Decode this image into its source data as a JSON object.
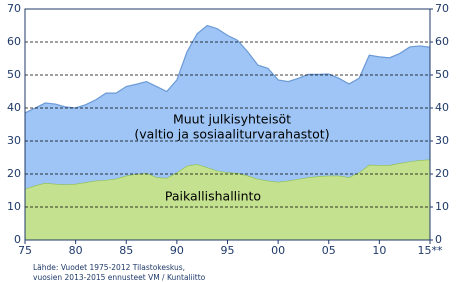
{
  "chart_data": {
    "type": "stacked-area",
    "x": [
      1975,
      1976,
      1977,
      1978,
      1979,
      1980,
      1981,
      1982,
      1983,
      1984,
      1985,
      1986,
      1987,
      1988,
      1989,
      1990,
      1991,
      1992,
      1993,
      1994,
      1995,
      1996,
      1997,
      1998,
      1999,
      2000,
      2001,
      2002,
      2003,
      2004,
      2005,
      2006,
      2007,
      2008,
      2009,
      2010,
      2011,
      2012,
      2013,
      2014,
      2015
    ],
    "series": [
      {
        "name": "Paikallishallinto",
        "color": "#c4e190",
        "edge": "#8fbf4f",
        "values": [
          15.5,
          16.5,
          17.3,
          17,
          16.8,
          17,
          17.5,
          18,
          18.2,
          18.6,
          19.5,
          20,
          20.3,
          19,
          18.8,
          20.5,
          22.5,
          23,
          22,
          21,
          20.5,
          20.3,
          19.5,
          18.5,
          18,
          17.6,
          18,
          18.5,
          19,
          19.3,
          19.5,
          19.5,
          19,
          20.5,
          22.8,
          22.7,
          22.7,
          23.3,
          23.8,
          24.2,
          24.4
        ]
      },
      {
        "name": "Muut julkisyhteisöt",
        "color": "#9ec5f5",
        "edge": "#6b9ad6",
        "values": [
          23,
          23.5,
          24.2,
          24.2,
          23.5,
          23,
          23.5,
          24.5,
          26.3,
          25.9,
          27,
          27.2,
          27.7,
          27.5,
          26.2,
          28,
          34.5,
          39.5,
          43,
          43,
          41.5,
          40.2,
          37.5,
          34.5,
          34,
          30.9,
          30,
          30.5,
          31.2,
          30.9,
          30.8,
          29.5,
          28.3,
          28.5,
          33.2,
          32.8,
          32.5,
          33.2,
          34.7,
          34.6,
          34
        ]
      }
    ],
    "annotations": [
      "(valtio ja sosiaaliturvarahastot)"
    ],
    "source": [
      "Lähde: Vuodet 1975-2012 Tilastokeskus,",
      "vuosien 2013-2015 ennusteet VM / Kuntaliitto"
    ],
    "xlim": [
      1975,
      2015
    ],
    "xticks": [
      {
        "value": 1975,
        "label": "75"
      },
      {
        "value": 1980,
        "label": "80"
      },
      {
        "value": 1985,
        "label": "85"
      },
      {
        "value": 1990,
        "label": "90"
      },
      {
        "value": 1995,
        "label": "95"
      },
      {
        "value": 2000,
        "label": "00"
      },
      {
        "value": 2005,
        "label": "05"
      },
      {
        "value": 2010,
        "label": "10"
      },
      {
        "value": 2015,
        "label": "15**"
      }
    ],
    "ylim": [
      0,
      70
    ],
    "yticks": [
      0,
      10,
      20,
      30,
      40,
      50,
      60,
      70
    ],
    "y2lim": [
      0,
      70
    ],
    "y2ticks": [
      0,
      10,
      20,
      30,
      40,
      50,
      60,
      70
    ],
    "grid": true
  }
}
